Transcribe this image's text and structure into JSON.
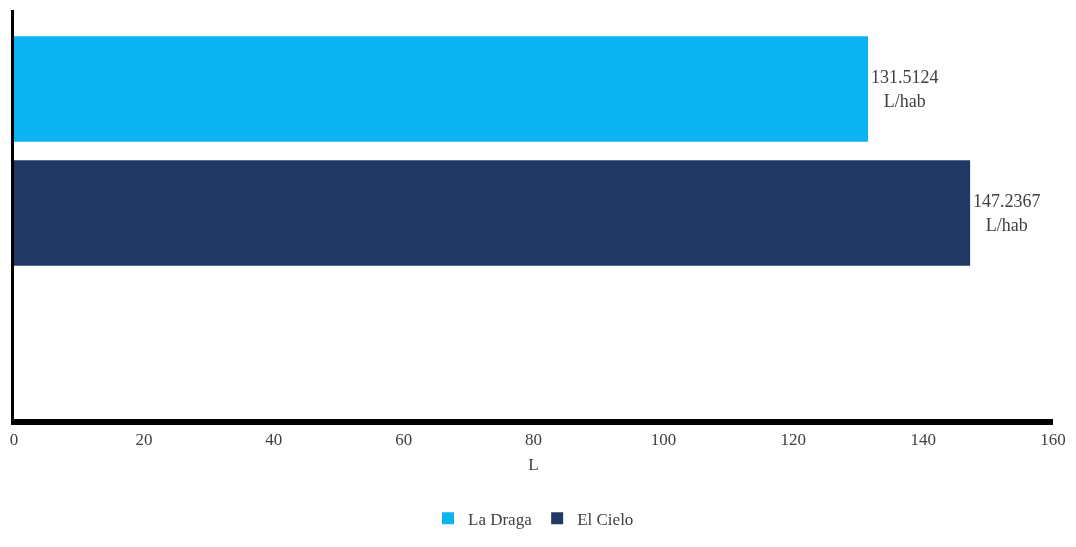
{
  "chart_data": {
    "type": "bar",
    "orientation": "horizontal",
    "categories": [
      null
    ],
    "xlabel": "L",
    "xlim": [
      0,
      160
    ],
    "xticks": [
      0,
      20,
      40,
      60,
      80,
      100,
      120,
      140,
      160
    ],
    "grid": false,
    "legend": "bottom",
    "series": [
      {
        "name": "La Draga",
        "color": "#0ab4f3",
        "values": [
          131.5124
        ],
        "value_labels": [
          "131.5124\nL/hab"
        ]
      },
      {
        "name": "El Cielo",
        "color": "#1f3864",
        "values": [
          147.2367
        ],
        "value_labels": [
          "147.2367\nL/hab"
        ]
      }
    ]
  }
}
